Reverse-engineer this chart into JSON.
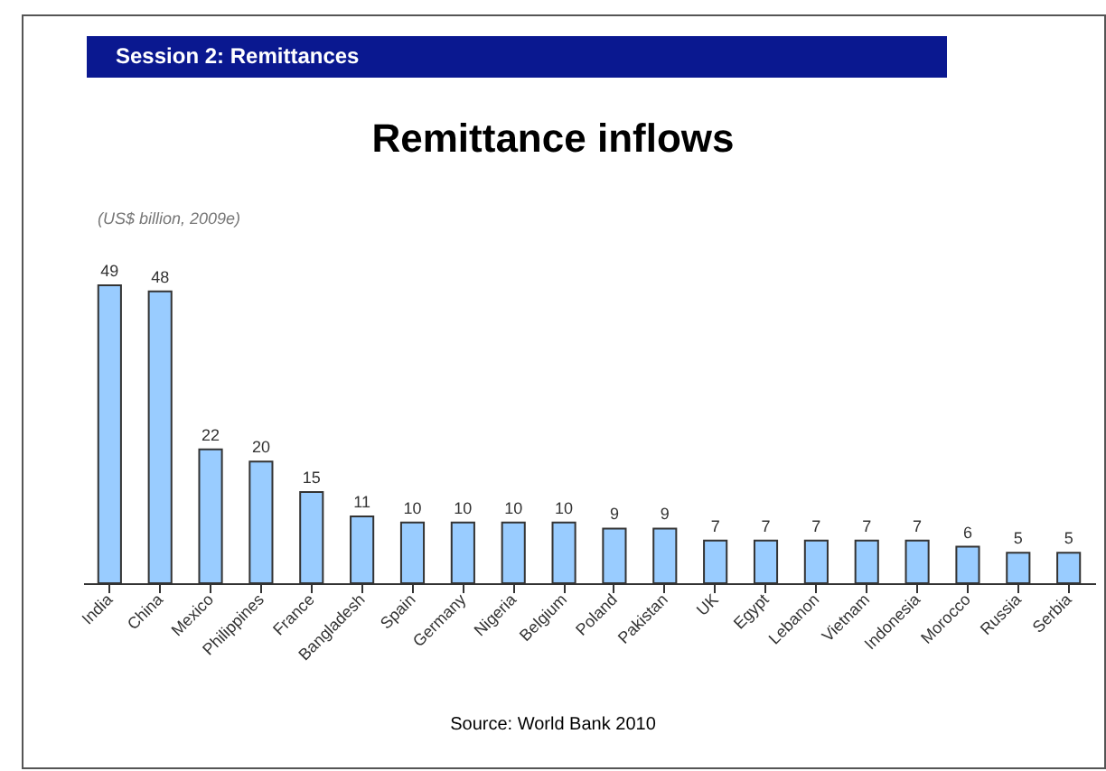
{
  "chart_data": {
    "type": "bar",
    "title": "Remittance inflows",
    "subtitle": "(US$ billion, 2009e)",
    "annotations": [
      "Session 2: Remittances",
      "Source: World Bank 2010"
    ],
    "categories": [
      "India",
      "China",
      "Mexico",
      "Philippines",
      "France",
      "Bangladesh",
      "Spain",
      "Germany",
      "Nigeria",
      "Belgium",
      "Poland",
      "Pakistan",
      "UK",
      "Egypt",
      "Lebanon",
      "Vietnam",
      "Indonesia",
      "Morocco",
      "Russia",
      "Serbia"
    ],
    "values": [
      49,
      48,
      22,
      20,
      15,
      11,
      10,
      10,
      10,
      10,
      9,
      9,
      7,
      7,
      7,
      7,
      7,
      6,
      5,
      5
    ],
    "color": "#99ccff",
    "data_labels": true
  }
}
